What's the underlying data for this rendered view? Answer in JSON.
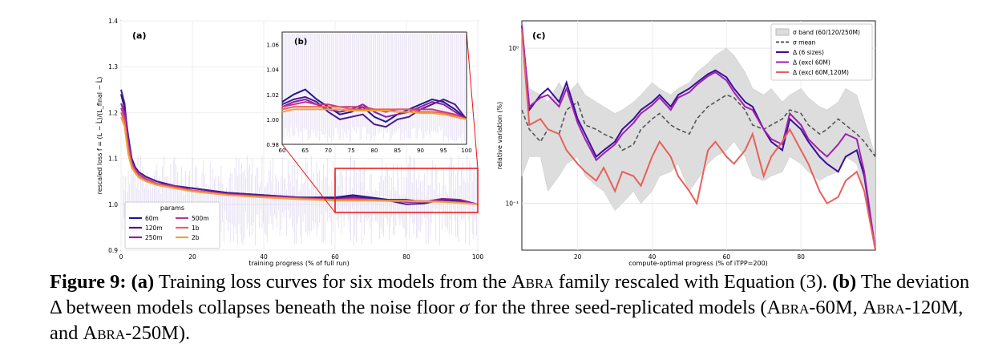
{
  "chart_data": [
    {
      "type": "line",
      "panel_label": "(a)",
      "xlabel": "training progress (% of full run)",
      "ylabel": "rescaled loss  f = (L − L̂)/(L_final − L̂)",
      "xlim": [
        0,
        100
      ],
      "ylim": [
        0.9,
        1.4
      ],
      "xticks": [
        "0",
        "20",
        "40",
        "60",
        "80",
        "100"
      ],
      "yticks": [
        "0.9",
        "1.0",
        "1.1",
        "1.2",
        "1.3",
        "1.4"
      ],
      "legend_title": "params",
      "legend_position": "bottom-left",
      "grid": true,
      "x": [
        0,
        1,
        2,
        3,
        4,
        5,
        7,
        10,
        15,
        20,
        30,
        40,
        50,
        60,
        65,
        70,
        75,
        80,
        85,
        90,
        95,
        100
      ],
      "series": [
        {
          "name": "60m",
          "color": "#1f1a8a",
          "values": [
            1.24,
            1.21,
            1.15,
            1.1,
            1.08,
            1.07,
            1.06,
            1.05,
            1.04,
            1.035,
            1.025,
            1.02,
            1.015,
            1.015,
            1.02,
            1.015,
            1.01,
            1.01,
            1.005,
            1.01,
            1.005,
            1.0
          ]
        },
        {
          "name": "120m",
          "color": "#4b1b8c",
          "values": [
            1.25,
            1.22,
            1.14,
            1.1,
            1.08,
            1.07,
            1.06,
            1.05,
            1.04,
            1.035,
            1.025,
            1.02,
            1.015,
            1.012,
            1.018,
            1.012,
            1.008,
            1.0,
            1.002,
            1.01,
            1.008,
            1.0
          ]
        },
        {
          "name": "250m",
          "color": "#8e1fa6",
          "values": [
            1.22,
            1.2,
            1.14,
            1.09,
            1.075,
            1.065,
            1.055,
            1.045,
            1.04,
            1.03,
            1.022,
            1.018,
            1.014,
            1.01,
            1.015,
            1.01,
            1.008,
            1.005,
            1.005,
            1.012,
            1.01,
            1.0
          ]
        },
        {
          "name": "500m",
          "color": "#c2378a",
          "values": [
            1.21,
            1.19,
            1.13,
            1.09,
            1.075,
            1.065,
            1.055,
            1.045,
            1.038,
            1.03,
            1.022,
            1.017,
            1.013,
            1.01,
            1.012,
            1.01,
            1.008,
            1.008,
            1.006,
            1.006,
            1.004,
            1.0
          ]
        },
        {
          "name": "1b",
          "color": "#e8635e",
          "values": [
            1.2,
            1.18,
            1.12,
            1.085,
            1.07,
            1.06,
            1.052,
            1.044,
            1.036,
            1.03,
            1.02,
            1.016,
            1.012,
            1.01,
            1.01,
            1.01,
            1.008,
            1.008,
            1.007,
            1.006,
            1.004,
            1.0
          ]
        },
        {
          "name": "2b",
          "color": "#f5a13a",
          "values": [
            1.19,
            1.17,
            1.11,
            1.08,
            1.068,
            1.058,
            1.05,
            1.042,
            1.035,
            1.028,
            1.02,
            1.015,
            1.011,
            1.008,
            1.008,
            1.008,
            1.007,
            1.007,
            1.006,
            1.005,
            1.003,
            1.0
          ]
        }
      ]
    },
    {
      "type": "line",
      "panel_label": "(b)",
      "xlim": [
        60,
        100
      ],
      "ylim": [
        0.98,
        1.07
      ],
      "xticks": [
        "60",
        "65",
        "70",
        "75",
        "80",
        "85",
        "90",
        "95",
        "100"
      ],
      "yticks": [
        "0.98",
        "1.00",
        "1.02",
        "1.04",
        "1.06"
      ],
      "x": [
        60,
        62.5,
        65,
        67.5,
        70,
        72.5,
        75,
        77.5,
        80,
        82.5,
        85,
        87.5,
        90,
        92.5,
        95,
        97.5,
        100
      ],
      "series": [
        {
          "name": "60m",
          "values": [
            1.014,
            1.02,
            1.024,
            1.016,
            1.01,
            1.004,
            1.006,
            1.01,
            1.002,
            0.998,
            1.004,
            1.008,
            1.012,
            1.016,
            1.014,
            1.008,
            1.0
          ]
        },
        {
          "name": "120m",
          "values": [
            1.012,
            1.016,
            1.018,
            1.014,
            1.006,
            1.0,
            1.002,
            1.004,
            0.996,
            0.994,
            1.0,
            1.002,
            1.008,
            1.012,
            1.016,
            1.012,
            1.0
          ]
        },
        {
          "name": "250m",
          "values": [
            1.01,
            1.014,
            1.016,
            1.012,
            1.008,
            1.006,
            1.008,
            1.012,
            1.006,
            1.002,
            1.004,
            1.006,
            1.01,
            1.014,
            1.012,
            1.006,
            1.0
          ]
        },
        {
          "name": "500m",
          "values": [
            1.01,
            1.012,
            1.014,
            1.012,
            1.012,
            1.01,
            1.01,
            1.01,
            1.008,
            1.006,
            1.008,
            1.008,
            1.008,
            1.008,
            1.006,
            1.004,
            1.0
          ]
        },
        {
          "name": "1b",
          "values": [
            1.008,
            1.01,
            1.01,
            1.01,
            1.01,
            1.01,
            1.008,
            1.008,
            1.008,
            1.008,
            1.008,
            1.008,
            1.006,
            1.006,
            1.005,
            1.003,
            1.0
          ]
        },
        {
          "name": "2b",
          "values": [
            1.006,
            1.008,
            1.008,
            1.008,
            1.008,
            1.008,
            1.007,
            1.007,
            1.007,
            1.007,
            1.006,
            1.006,
            1.005,
            1.005,
            1.004,
            1.002,
            1.0
          ]
        }
      ]
    },
    {
      "type": "line",
      "panel_label": "(c)",
      "xlabel": "compute-optimal progress (% of iTPP=200)",
      "ylabel": "relative variation (%)",
      "yscale": "log",
      "xlim": [
        5,
        100
      ],
      "ylim": [
        0.05,
        1.5
      ],
      "xticks": [
        "20",
        "40",
        "60",
        "80"
      ],
      "yticks": [
        "10⁻¹",
        "10⁰"
      ],
      "legend_position": "top-right",
      "grid": true,
      "x": [
        5,
        7,
        10,
        12,
        15,
        17,
        20,
        22,
        25,
        27,
        30,
        32,
        35,
        37,
        40,
        42,
        45,
        47,
        50,
        52,
        55,
        57,
        60,
        62,
        65,
        67,
        70,
        72,
        75,
        77,
        80,
        82,
        85,
        87,
        90,
        92,
        95,
        97,
        100
      ],
      "band": {
        "name": "σ band (60/120/250M)",
        "color": "#dddddd",
        "lower": [
          0.15,
          0.2,
          0.2,
          0.12,
          0.15,
          0.18,
          0.2,
          0.15,
          0.13,
          0.12,
          0.09,
          0.1,
          0.12,
          0.1,
          0.12,
          0.15,
          0.16,
          0.18,
          0.12,
          0.14,
          0.18,
          0.2,
          0.22,
          0.25,
          0.2,
          0.15,
          0.14,
          0.15,
          0.16,
          0.2,
          0.18,
          0.16,
          0.14,
          0.15,
          0.16,
          0.2,
          0.18,
          0.12,
          0.05
        ],
        "upper": [
          1.2,
          0.55,
          0.5,
          0.45,
          0.6,
          0.5,
          0.6,
          0.5,
          0.45,
          0.42,
          0.38,
          0.4,
          0.45,
          0.5,
          0.6,
          0.55,
          0.5,
          0.55,
          0.6,
          0.7,
          0.8,
          0.9,
          1.0,
          0.9,
          0.7,
          0.55,
          0.5,
          0.55,
          0.45,
          0.5,
          0.55,
          0.48,
          0.42,
          0.4,
          0.45,
          0.55,
          0.5,
          0.35,
          0.2
        ]
      },
      "series": [
        {
          "name": "σ mean",
          "color": "#555555",
          "dashed": true,
          "values": [
            0.4,
            0.3,
            0.25,
            0.3,
            0.28,
            0.4,
            0.45,
            0.32,
            0.3,
            0.28,
            0.26,
            0.22,
            0.24,
            0.3,
            0.35,
            0.38,
            0.32,
            0.3,
            0.28,
            0.35,
            0.42,
            0.45,
            0.5,
            0.48,
            0.4,
            0.32,
            0.3,
            0.32,
            0.35,
            0.4,
            0.38,
            0.32,
            0.28,
            0.3,
            0.35,
            0.32,
            0.28,
            0.25,
            0.2
          ]
        },
        {
          "name": "Δ (6 sizes)",
          "color": "#3a0f9a",
          "values": [
            1.4,
            0.4,
            0.5,
            0.55,
            0.45,
            0.6,
            0.35,
            0.28,
            0.2,
            0.22,
            0.25,
            0.3,
            0.35,
            0.4,
            0.45,
            0.5,
            0.42,
            0.5,
            0.55,
            0.6,
            0.68,
            0.72,
            0.65,
            0.55,
            0.45,
            0.42,
            0.3,
            0.25,
            0.22,
            0.35,
            0.3,
            0.25,
            0.2,
            0.18,
            0.16,
            0.2,
            0.22,
            0.15,
            0.05
          ]
        },
        {
          "name": "Δ (excl 60M)",
          "color": "#a020b0",
          "values": [
            1.4,
            0.42,
            0.48,
            0.5,
            0.42,
            0.55,
            0.33,
            0.26,
            0.19,
            0.21,
            0.24,
            0.28,
            0.33,
            0.38,
            0.43,
            0.48,
            0.4,
            0.48,
            0.52,
            0.58,
            0.66,
            0.7,
            0.62,
            0.52,
            0.42,
            0.4,
            0.3,
            0.26,
            0.24,
            0.38,
            0.32,
            0.26,
            0.22,
            0.2,
            0.24,
            0.28,
            0.26,
            0.16,
            0.05
          ]
        },
        {
          "name": "Δ (excl 60M,120M)",
          "color": "#e8605a",
          "values": [
            1.3,
            0.32,
            0.35,
            0.3,
            0.28,
            0.22,
            0.18,
            0.16,
            0.14,
            0.17,
            0.12,
            0.16,
            0.15,
            0.13,
            0.2,
            0.25,
            0.2,
            0.15,
            0.12,
            0.1,
            0.22,
            0.25,
            0.2,
            0.18,
            0.22,
            0.28,
            0.15,
            0.2,
            0.25,
            0.3,
            0.22,
            0.18,
            0.12,
            0.1,
            0.11,
            0.14,
            0.16,
            0.12,
            0.05
          ]
        }
      ]
    }
  ],
  "caption": {
    "fig_label": "Figure 9:",
    "a_label": "(a)",
    "a_text_1": " Training loss curves for six models from the ",
    "abra": "Abra",
    "a_text_2": " family rescaled with Equation (3).",
    "b_label": "(b)",
    "b_text_1": " The deviation Δ between models collapses beneath the noise floor ",
    "sigma": "σ",
    "b_text_2": " for the three seed-replicated models (",
    "m1": "-60M, ",
    "m2": "-120M, and ",
    "m3": "-250M)."
  }
}
